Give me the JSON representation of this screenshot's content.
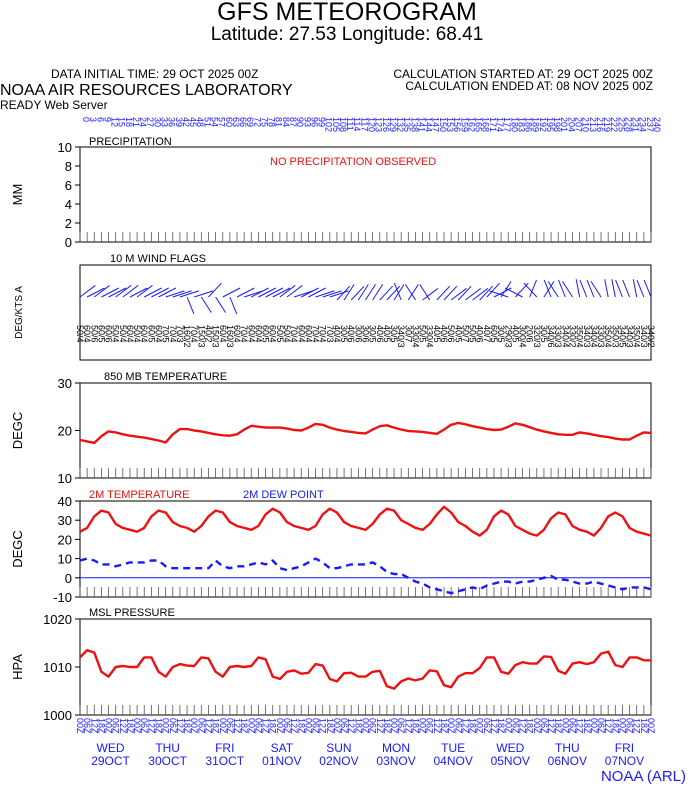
{
  "header": {
    "title": "GFS METEOROGRAM",
    "coords": "Latitude: 27.53 Longitude:  68.41",
    "init_time": "DATA INITIAL TIME: 29 OCT 2025 00Z",
    "calc_started": "CALCULATION STARTED AT: 29 OCT 2025 00Z",
    "calc_ended": "CALCULATION ENDED AT: 08 NOV 2025 00Z",
    "lab": "NOAA AIR RESOURCES LABORATORY",
    "server": "READY Web Server"
  },
  "footer": "NOAA (ARL)",
  "colors": {
    "red": "#ee1111",
    "blue": "#1a1aff",
    "black": "#000000"
  },
  "forecast_hours": [
    0,
    3,
    6,
    9,
    12,
    15,
    18,
    21,
    24,
    27,
    30,
    33,
    36,
    39,
    42,
    45,
    48,
    51,
    54,
    57,
    60,
    63,
    66,
    69,
    72,
    75,
    78,
    81,
    84,
    87,
    90,
    93,
    96,
    99,
    102,
    105,
    108,
    111,
    114,
    117,
    120,
    123,
    126,
    129,
    132,
    135,
    138,
    141,
    144,
    147,
    150,
    153,
    156,
    159,
    162,
    165,
    168,
    171,
    174,
    177,
    180,
    183,
    186,
    189,
    192,
    195,
    198,
    201,
    204,
    207,
    210,
    213,
    216,
    219,
    222,
    225,
    228,
    231,
    234,
    237,
    240
  ],
  "day_labels": [
    {
      "day": "WED",
      "date": "29OCT"
    },
    {
      "day": "THU",
      "date": "30OCT"
    },
    {
      "day": "FRI",
      "date": "31OCT"
    },
    {
      "day": "SAT",
      "date": "01NOV"
    },
    {
      "day": "SUN",
      "date": "02NOV"
    },
    {
      "day": "MON",
      "date": "03NOV"
    },
    {
      "day": "TUE",
      "date": "04NOV"
    },
    {
      "day": "WED",
      "date": "05NOV"
    },
    {
      "day": "THU",
      "date": "06NOV"
    },
    {
      "day": "FRI",
      "date": "07NOV"
    }
  ],
  "utc_hour_labels": [
    "00Z",
    "06Z",
    "12Z",
    "18Z"
  ],
  "chart_data": [
    {
      "type": "bar",
      "title": "PRECIPITATION",
      "ylabel": "MM",
      "ylim": [
        0,
        10
      ],
      "yticks": [
        0,
        2,
        4,
        6,
        8,
        10
      ],
      "note": "NO PRECIPITATION OBSERVED",
      "values": []
    },
    {
      "type": "wind_barbs",
      "title": "10 M  WIND FLAGS",
      "ylabel": "DEG/KTS  A",
      "directions": [
        50,
        60,
        50,
        60,
        60,
        50,
        50,
        60,
        50,
        60,
        60,
        60,
        70,
        70,
        70,
        160,
        70,
        150,
        40,
        150,
        60,
        160,
        60,
        70,
        60,
        60,
        60,
        60,
        50,
        50,
        70,
        60,
        60,
        70,
        70,
        70,
        40,
        30,
        40,
        30,
        30,
        30,
        40,
        40,
        30,
        340,
        30,
        330,
        50,
        330,
        40,
        40,
        50,
        40,
        50,
        50,
        40,
        40,
        60,
        30,
        290,
        40,
        300,
        20,
        320,
        30,
        340,
        330,
        340,
        330,
        350,
        340,
        340,
        330,
        350,
        350,
        340,
        340,
        350,
        340,
        340
      ],
      "speeds": [
        4,
        4,
        6,
        5,
        6,
        4,
        4,
        4,
        4,
        4,
        5,
        4,
        5,
        4,
        3,
        2,
        4,
        3,
        2,
        3,
        4,
        3,
        4,
        4,
        4,
        4,
        5,
        4,
        5,
        4,
        4,
        4,
        4,
        4,
        4,
        3,
        4,
        5,
        6,
        6,
        6,
        5,
        6,
        5,
        5,
        3,
        7,
        4,
        5,
        4,
        5,
        6,
        6,
        5,
        7,
        5,
        6,
        7,
        5,
        5,
        3,
        5,
        4,
        6,
        3,
        5,
        6,
        3,
        4,
        2,
        4,
        3,
        4,
        3,
        4,
        3,
        5,
        3,
        4,
        3,
        2
      ]
    },
    {
      "type": "line",
      "title": "850 MB  TEMPERATURE",
      "ylabel": "DEGC",
      "ylim": [
        10,
        30
      ],
      "yticks": [
        10,
        20,
        30
      ],
      "series": [
        {
          "color": "#ee1111",
          "values": [
            18,
            17.7,
            17.4,
            18.8,
            19.8,
            19.6,
            19.2,
            18.9,
            18.7,
            18.5,
            18.2,
            17.9,
            17.5,
            19.2,
            20.3,
            20.3,
            20,
            19.8,
            19.5,
            19.2,
            19,
            18.9,
            19.2,
            20.2,
            21,
            20.8,
            20.6,
            20.6,
            20.6,
            20.4,
            20.1,
            20,
            20.6,
            21.4,
            21.2,
            20.6,
            20.2,
            19.9,
            19.7,
            19.5,
            19.4,
            20.2,
            20.9,
            21.1,
            20.6,
            20.2,
            19.9,
            19.8,
            19.7,
            19.5,
            19.3,
            20.2,
            21.2,
            21.6,
            21.3,
            20.9,
            20.6,
            20.3,
            20.1,
            20.2,
            20.8,
            21.5,
            21.2,
            20.7,
            20.2,
            19.8,
            19.5,
            19.2,
            19.1,
            19.1,
            19.6,
            19.4,
            19.1,
            18.8,
            18.6,
            18.3,
            18.1,
            18.1,
            18.9,
            19.6,
            19.5
          ]
        }
      ]
    },
    {
      "type": "line",
      "ylabel": "DEGC",
      "ylim": [
        -10,
        40
      ],
      "yticks": [
        -10,
        0,
        10,
        20,
        30,
        40
      ],
      "series": [
        {
          "name": "2M TEMPERATURE",
          "color": "#ee1111",
          "style": "solid",
          "values": [
            24,
            26,
            32,
            35,
            34,
            28,
            26,
            25,
            24,
            26,
            32,
            35,
            34,
            29,
            27,
            26,
            24,
            27,
            32,
            35,
            34,
            29,
            27,
            26,
            25,
            27,
            33,
            36,
            34,
            29,
            27,
            26,
            25,
            27,
            33,
            36,
            34,
            29,
            27,
            26,
            25,
            28,
            33,
            36,
            35,
            30,
            28,
            26,
            25,
            28,
            33,
            37,
            34,
            29,
            27,
            24,
            22,
            25,
            32,
            35,
            33,
            27,
            25,
            23,
            22,
            25,
            31,
            34,
            33,
            27,
            25,
            24,
            22,
            26,
            32,
            34,
            32,
            26,
            24,
            23,
            22
          ]
        },
        {
          "name": "2M  DEW POINT",
          "color": "#1a1aff",
          "style": "dashed",
          "values": [
            9,
            10,
            9,
            7,
            7,
            6,
            7,
            8,
            8,
            8,
            9,
            9,
            6,
            5,
            5,
            5,
            5,
            5,
            5,
            9,
            6,
            5,
            6,
            6,
            7,
            8,
            7,
            9,
            5,
            4,
            5,
            6,
            8,
            10,
            8,
            5,
            5,
            6,
            7,
            7,
            7,
            8,
            6,
            3,
            2,
            2,
            0,
            -2,
            -3,
            -5,
            -6,
            -7,
            -8,
            -7,
            -6,
            -5,
            -6,
            -4,
            -3,
            -2,
            -2,
            -3,
            -2,
            -2,
            -1,
            0,
            1,
            -1,
            -1,
            -2,
            -3,
            -3,
            -2,
            -3,
            -4,
            -5,
            -6,
            -5,
            -5,
            -5,
            -6
          ]
        }
      ]
    },
    {
      "type": "line",
      "title": "MSL PRESSURE",
      "ylabel": "HPA",
      "ylim": [
        1000,
        1020
      ],
      "yticks": [
        1000,
        1010,
        1020
      ],
      "series": [
        {
          "color": "#ee1111",
          "values": [
            1012,
            1013.5,
            1013,
            1009,
            1008,
            1010,
            1010.2,
            1010,
            1010,
            1012,
            1012,
            1009,
            1008,
            1010,
            1010.6,
            1010.3,
            1010.2,
            1012,
            1011.8,
            1009,
            1008,
            1010,
            1010.2,
            1010,
            1010.2,
            1012,
            1011.6,
            1008,
            1007.5,
            1009,
            1009.3,
            1008.6,
            1008.8,
            1010.6,
            1010.3,
            1007.5,
            1007,
            1008.7,
            1008.8,
            1008,
            1008,
            1009,
            1009.2,
            1006,
            1005.5,
            1007,
            1007.6,
            1007.2,
            1007.6,
            1009.3,
            1009.1,
            1006.2,
            1005.8,
            1008,
            1008.7,
            1008.7,
            1009.8,
            1012,
            1012,
            1009,
            1008.6,
            1010.4,
            1011,
            1010.7,
            1010.7,
            1012.2,
            1012.1,
            1009.2,
            1008.6,
            1010.7,
            1011,
            1010.6,
            1011,
            1012.8,
            1013.2,
            1010.4,
            1010,
            1012,
            1012,
            1011.4,
            1011.4
          ]
        }
      ]
    }
  ]
}
